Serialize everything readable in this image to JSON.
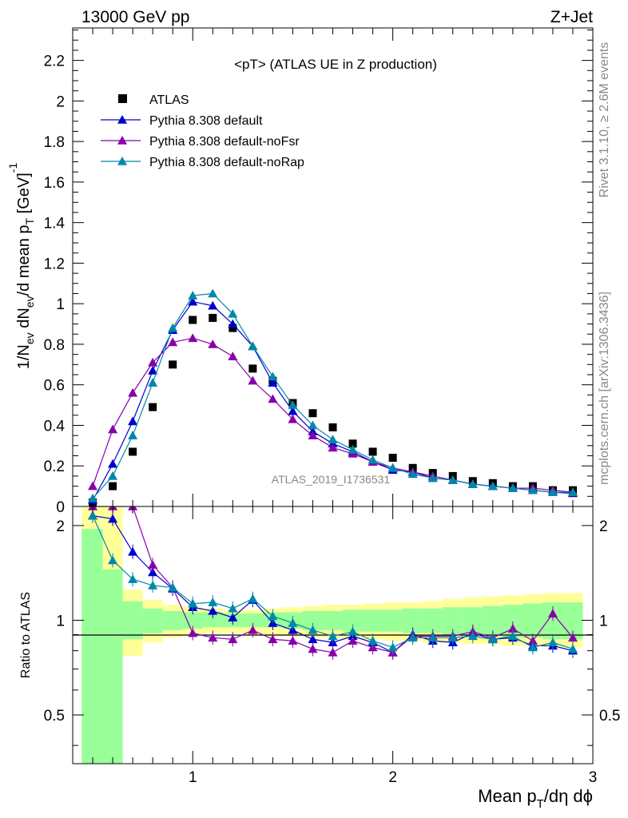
{
  "header": {
    "left": "13000 GeV pp",
    "right": "Z+Jet"
  },
  "side": {
    "rivet": "Rivet 3.1.10, ≥ 2.6M events",
    "mcplots": "mcplots.cern.ch [arXiv:1306.3436]"
  },
  "chart_data": [
    {
      "panel": "main",
      "type": "scatter",
      "title": "<pT> (ATLAS UE in Z production)",
      "analysis_label": "ATLAS_2019_I1736531",
      "ylabel": "1/N_ev dN_ev/d mean p_T [GeV]^-1",
      "xlabel": "Mean p_T/dη dϕ",
      "xlim": [
        0.4,
        3.0
      ],
      "ylim": [
        0,
        2.36
      ],
      "xticks": [
        "1",
        "2",
        "3"
      ],
      "yticks": [
        "0",
        "0.2",
        "0.4",
        "0.6",
        "0.8",
        "1",
        "1.2",
        "1.4",
        "1.6",
        "1.8",
        "2",
        "2.2"
      ],
      "legend_position": "top-left",
      "x": [
        0.5,
        0.6,
        0.7,
        0.8,
        0.9,
        1.0,
        1.1,
        1.2,
        1.3,
        1.4,
        1.5,
        1.6,
        1.7,
        1.8,
        1.9,
        2.0,
        2.1,
        2.2,
        2.3,
        2.4,
        2.5,
        2.6,
        2.7,
        2.8,
        2.9
      ],
      "series": [
        {
          "name": "ATLAS",
          "marker": "square",
          "color": "#000000",
          "values": [
            0.02,
            0.1,
            0.27,
            0.49,
            0.7,
            0.92,
            0.93,
            0.88,
            0.68,
            0.62,
            0.51,
            0.46,
            0.39,
            0.31,
            0.27,
            0.24,
            0.19,
            0.165,
            0.15,
            0.125,
            0.115,
            0.1,
            0.1,
            0.08,
            0.08
          ]
        },
        {
          "name": "Pythia 8.308 default",
          "marker": "triangle",
          "color": "#0000cc",
          "values": [
            0.03,
            0.21,
            0.42,
            0.67,
            0.87,
            1.01,
            0.99,
            0.9,
            0.79,
            0.61,
            0.47,
            0.37,
            0.31,
            0.27,
            0.22,
            0.18,
            0.17,
            0.14,
            0.13,
            0.11,
            0.1,
            0.09,
            0.08,
            0.07,
            0.065
          ]
        },
        {
          "name": "Pythia 8.308 default-noFsr",
          "marker": "triangle",
          "color": "#8800aa",
          "values": [
            0.1,
            0.38,
            0.56,
            0.71,
            0.81,
            0.83,
            0.8,
            0.74,
            0.62,
            0.53,
            0.43,
            0.35,
            0.29,
            0.26,
            0.22,
            0.19,
            0.17,
            0.15,
            0.13,
            0.11,
            0.1,
            0.09,
            0.09,
            0.08,
            0.07
          ]
        },
        {
          "name": "Pythia 8.308 default-noRap",
          "marker": "triangle",
          "color": "#0088aa",
          "values": [
            0.04,
            0.15,
            0.35,
            0.61,
            0.88,
            1.04,
            1.05,
            0.95,
            0.79,
            0.64,
            0.5,
            0.4,
            0.33,
            0.28,
            0.23,
            0.19,
            0.16,
            0.14,
            0.13,
            0.11,
            0.1,
            0.09,
            0.08,
            0.07,
            0.07
          ]
        }
      ]
    },
    {
      "panel": "ratio",
      "type": "line",
      "ylabel": "Ratio to ATLAS",
      "xlabel": "Mean p_T/dη dϕ",
      "xlim": [
        0.4,
        3.0
      ],
      "ylim": [
        0.35,
        2.3
      ],
      "log_y": true,
      "yticks": [
        "0.5",
        "1",
        "2"
      ],
      "reference_line": 1,
      "x": [
        0.5,
        0.6,
        0.7,
        0.8,
        0.9,
        1.0,
        1.1,
        1.2,
        1.3,
        1.4,
        1.5,
        1.6,
        1.7,
        1.8,
        1.9,
        2.0,
        2.1,
        2.2,
        2.3,
        2.4,
        2.5,
        2.6,
        2.7,
        2.8,
        2.9
      ],
      "bands": {
        "yellow_color": "#ffff99",
        "green_color": "#99ff99",
        "yellow_low": [
          0.3,
          0.66,
          0.77,
          0.85,
          0.88,
          0.9,
          0.91,
          0.91,
          0.9,
          0.89,
          0.89,
          0.88,
          0.88,
          0.87,
          0.87,
          0.86,
          0.86,
          0.85,
          0.85,
          0.84,
          0.84,
          0.83,
          0.83,
          0.82,
          0.82
        ],
        "yellow_high": [
          2.35,
          2.35,
          1.25,
          1.16,
          1.12,
          1.1,
          1.09,
          1.08,
          1.08,
          1.09,
          1.1,
          1.11,
          1.12,
          1.12,
          1.13,
          1.14,
          1.14,
          1.15,
          1.17,
          1.18,
          1.19,
          1.2,
          1.21,
          1.22,
          1.22
        ],
        "green_low": [
          0.3,
          0.3,
          0.87,
          0.91,
          0.93,
          0.94,
          0.95,
          0.95,
          0.95,
          0.95,
          0.94,
          0.93,
          0.93,
          0.92,
          0.92,
          0.92,
          0.91,
          0.91,
          0.9,
          0.89,
          0.89,
          0.88,
          0.88,
          0.87,
          0.87
        ],
        "green_high": [
          1.95,
          1.45,
          1.15,
          1.09,
          1.07,
          1.06,
          1.06,
          1.05,
          1.05,
          1.06,
          1.06,
          1.07,
          1.07,
          1.08,
          1.08,
          1.08,
          1.09,
          1.09,
          1.1,
          1.1,
          1.11,
          1.12,
          1.13,
          1.14,
          1.14
        ]
      },
      "series": [
        {
          "name": "Pythia 8.308 default",
          "color": "#0000cc",
          "values": [
            2.15,
            2.1,
            1.65,
            1.42,
            1.26,
            1.1,
            1.07,
            1.02,
            1.16,
            0.98,
            0.93,
            0.87,
            0.85,
            0.89,
            0.85,
            0.79,
            0.9,
            0.86,
            0.85,
            0.91,
            0.87,
            0.88,
            0.83,
            0.83,
            0.8
          ]
        },
        {
          "name": "Pythia 8.308 default-noFsr",
          "color": "#8800aa",
          "values": [
            2.5,
            2.5,
            2.5,
            1.5,
            1.27,
            0.91,
            0.88,
            0.87,
            0.93,
            0.87,
            0.86,
            0.81,
            0.79,
            0.86,
            0.82,
            0.79,
            0.89,
            0.89,
            0.89,
            0.92,
            0.88,
            0.94,
            0.86,
            1.05,
            0.88
          ]
        },
        {
          "name": "Pythia 8.308 default-noRap",
          "color": "#0088aa",
          "values": [
            2.15,
            1.55,
            1.35,
            1.29,
            1.27,
            1.13,
            1.14,
            1.09,
            1.17,
            1.03,
            0.98,
            0.93,
            0.89,
            0.92,
            0.86,
            0.82,
            0.88,
            0.88,
            0.88,
            0.89,
            0.87,
            0.89,
            0.82,
            0.85,
            0.81
          ]
        }
      ]
    }
  ]
}
